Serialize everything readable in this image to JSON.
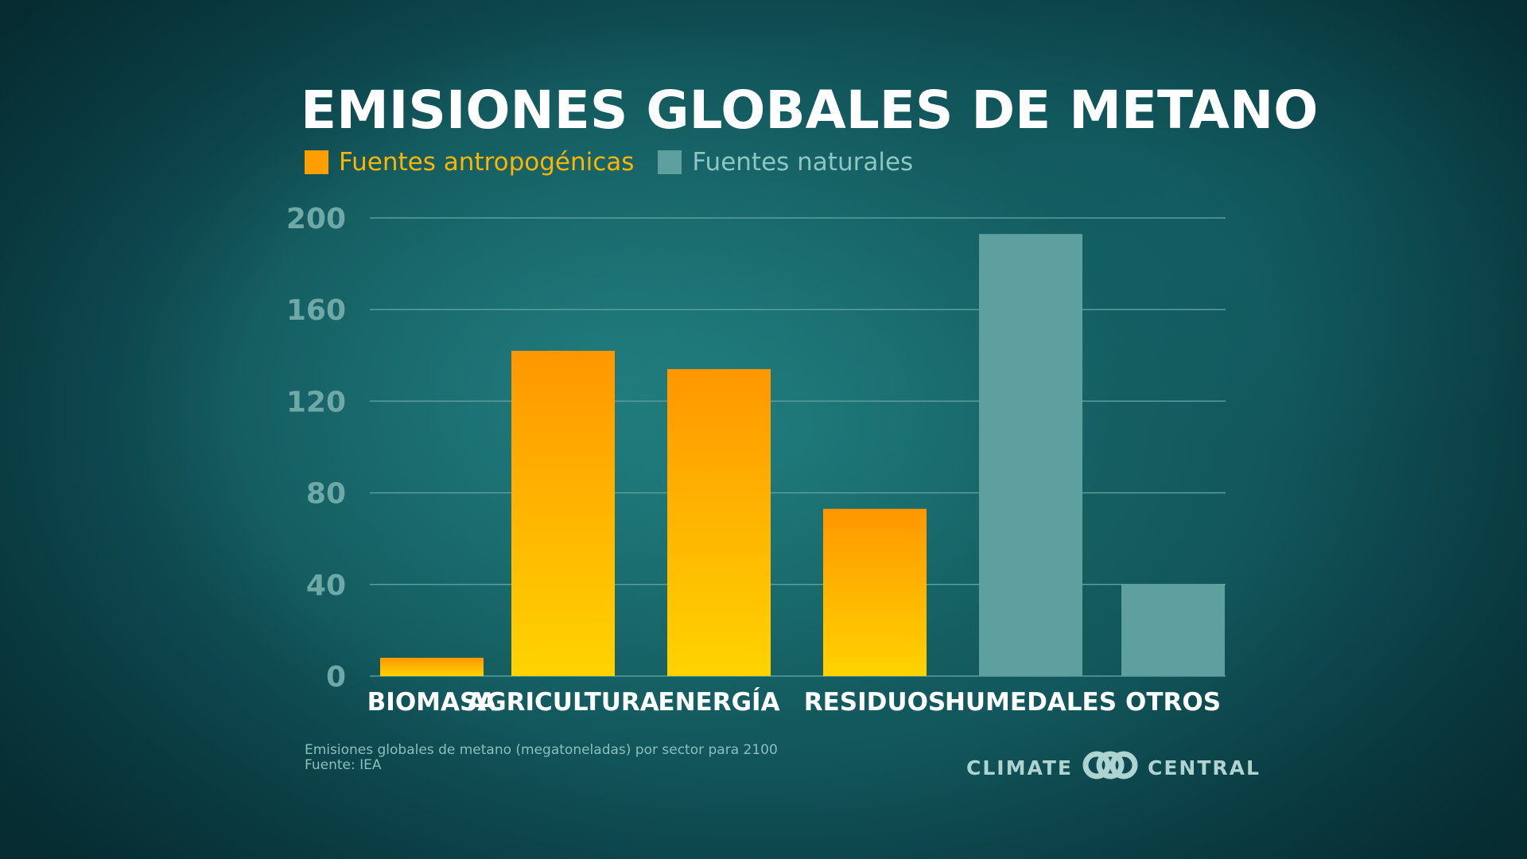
{
  "chart_data": {
    "type": "bar",
    "title": "EMISIONES GLOBALES DE METANO",
    "categories": [
      "BIOMASA",
      "AGRICULTURA",
      "ENERGÍA",
      "RESIDUOS",
      "HUMEDALES",
      "OTROS"
    ],
    "values": [
      8,
      142,
      134,
      73,
      193,
      40
    ],
    "bar_groups": [
      "Fuentes antropogénicas",
      "Fuentes antropogénicas",
      "Fuentes antropogénicas",
      "Fuentes antropogénicas",
      "Fuentes naturales",
      "Fuentes naturales"
    ],
    "legend": [
      {
        "name": "Fuentes antropogénicas",
        "color": "#ff9e00"
      },
      {
        "name": "Fuentes naturales",
        "color": "#5e9f9f"
      }
    ],
    "yticks": [
      0,
      40,
      80,
      120,
      160,
      200
    ],
    "ylim": [
      0,
      200
    ],
    "xlabel": "",
    "ylabel": "",
    "grid": true,
    "legend_position": "top-left"
  },
  "footnote": {
    "line1": "Emisiones globales de metano (megatoneladas) por sector para 2100",
    "line2": "Fuente: IEA"
  },
  "brand": {
    "left": "CLIMATE",
    "right": "CENTRAL"
  },
  "colors": {
    "anthro_top": "#ff9700",
    "anthro_bottom": "#ffd300",
    "natural": "#5e9f9f",
    "tick_text": "#6fa9a7",
    "gridline": "#5a9d9c",
    "legend_natural_text": "#8cc7c4",
    "legend_anthro_text": "#ffb400"
  }
}
